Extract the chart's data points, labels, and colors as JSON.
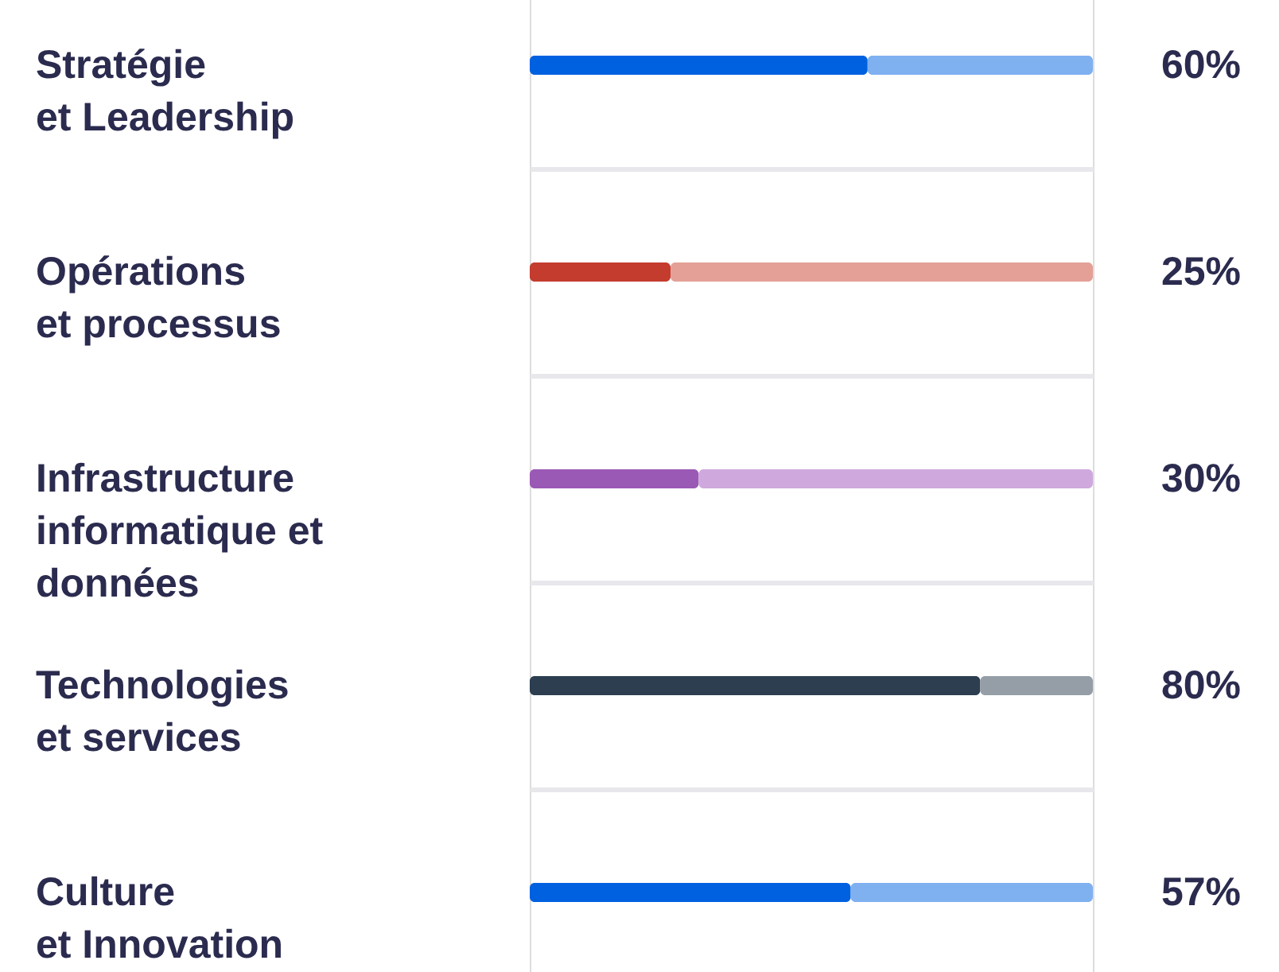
{
  "chart_data": {
    "type": "bar",
    "orientation": "horizontal",
    "stacked": true,
    "categories": [
      "Stratégie\net Leadership",
      "Opérations\net processus",
      "Infrastructure\ninformatique et\ndonnées",
      "Technologies\net services",
      "Culture\net Innovation"
    ],
    "series": [
      {
        "colors": [
          "#0061e0",
          "#c43c2e",
          "#9b59b6",
          "#2c3e50",
          "#0061e0"
        ],
        "values": [
          60,
          25,
          30,
          80,
          57
        ],
        "value_labels": [
          "60%",
          "25%",
          "30%",
          "80%",
          "57%"
        ]
      },
      {
        "colors": [
          "#7fb0f0",
          "#e4a097",
          "#cfa9de",
          "#959ea7",
          "#7fb0f0"
        ],
        "values": [
          40,
          75,
          70,
          20,
          43
        ]
      }
    ],
    "xlim": [
      0,
      100
    ],
    "tick_labels": "y",
    "grid": "y"
  }
}
